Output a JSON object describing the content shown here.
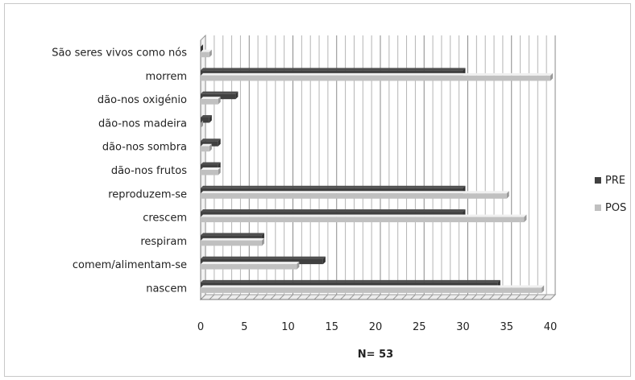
{
  "chart_data": {
    "type": "bar",
    "orientation": "horizontal",
    "categories": [
      "nascem",
      "comem/alimentam-se",
      "respiram",
      "crescem",
      "reproduzem-se",
      "dão-nos frutos",
      "dão-nos sombra",
      "dão-nos madeira",
      "dão-nos oxigénio",
      "morrem",
      "São seres vivos como nós"
    ],
    "series": [
      {
        "name": "PRE",
        "color": "#404040",
        "values": [
          34,
          14,
          7,
          30,
          30,
          2,
          2,
          1,
          4,
          30,
          0
        ]
      },
      {
        "name": "POS",
        "color": "#c0c0c0",
        "values": [
          39,
          11,
          7,
          37,
          35,
          2,
          1,
          0,
          2,
          40,
          1
        ]
      }
    ],
    "xlim": [
      0,
      40
    ],
    "xticks": [
      0,
      5,
      10,
      15,
      20,
      25,
      30,
      35,
      40
    ],
    "xlabel": "N= 53",
    "title": "",
    "ylabel": "",
    "grid": true,
    "legend_position": "right"
  }
}
